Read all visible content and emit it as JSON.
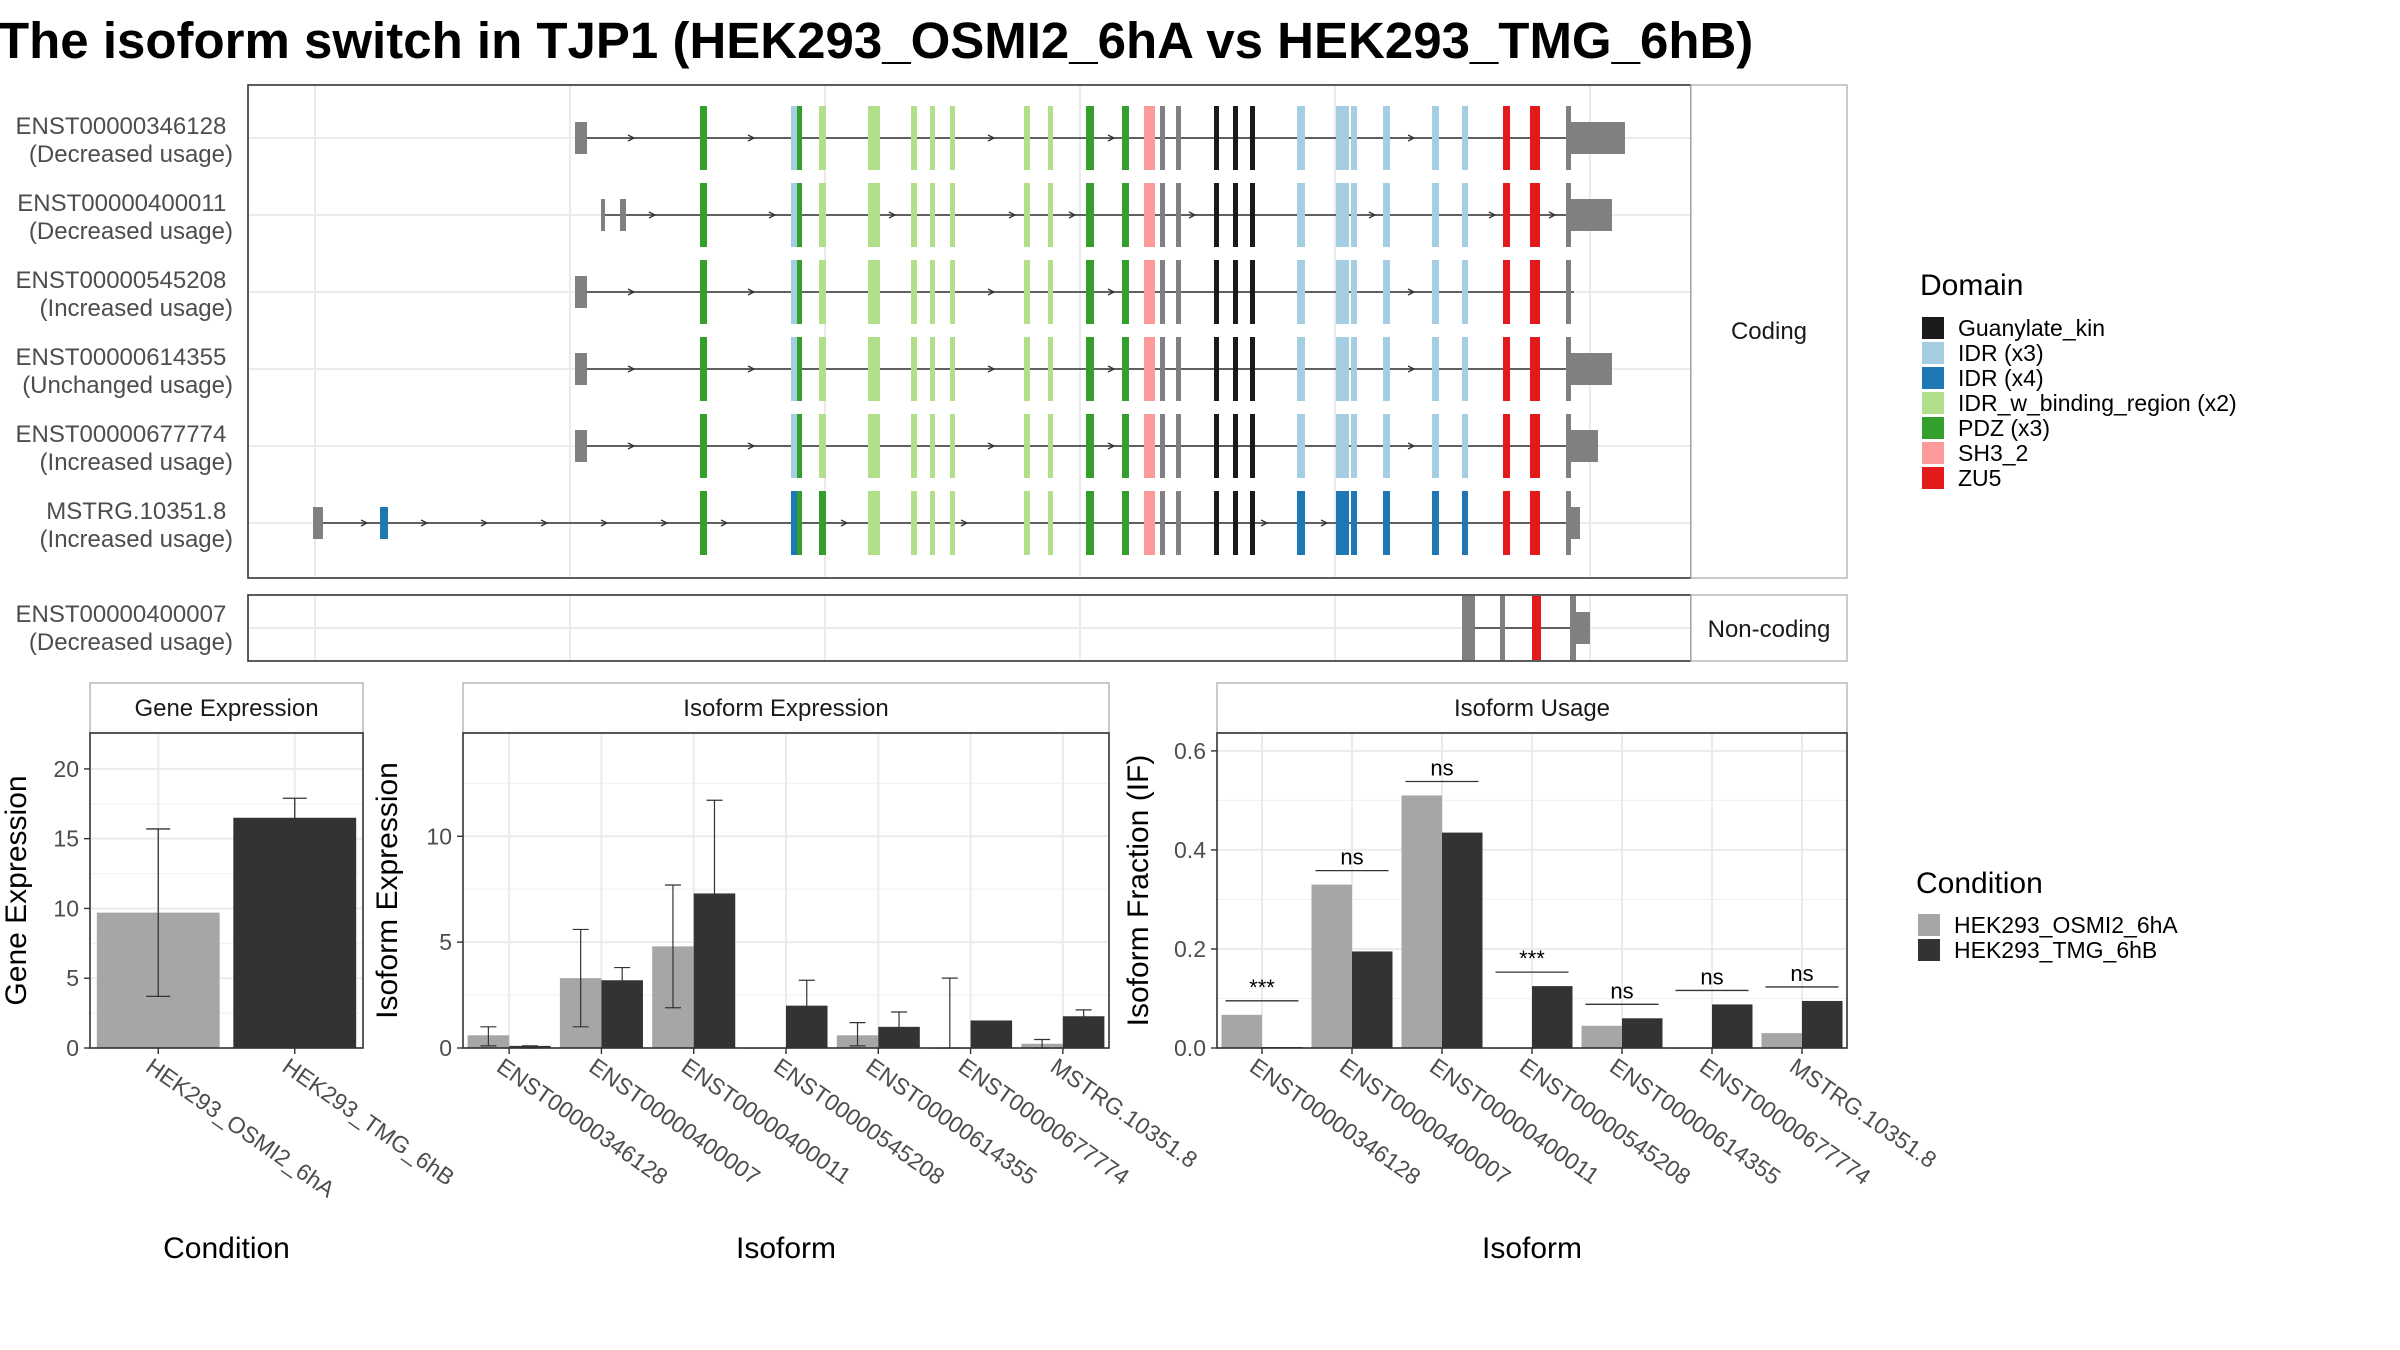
{
  "title": "The isoform switch in TJP1 (HEK293_OSMI2_6hA vs HEK293_TMG_6hB)",
  "colors": {
    "cond_a": "#a6a6a6",
    "cond_b": "#333333",
    "utr": "#808080",
    "grid": "#ebebeb",
    "panel_border": "#333333",
    "strip_border": "#b3b3b3"
  },
  "structure": {
    "strip_coding": "Coding",
    "strip_noncoding": "Non-coding",
    "coding_labels": [
      {
        "id": "ENST00000346128",
        "usage": "(Decreased usage)"
      },
      {
        "id": "ENST00000400011",
        "usage": "(Decreased usage)"
      },
      {
        "id": "ENST00000545208",
        "usage": "(Increased usage)"
      },
      {
        "id": "ENST00000614355",
        "usage": "(Unchanged usage)"
      },
      {
        "id": "ENST00000677774",
        "usage": "(Increased usage)"
      },
      {
        "id": "MSTRG.10351.8",
        "usage": "(Increased usage)"
      }
    ],
    "noncoding_labels": [
      {
        "id": "ENST00000400007",
        "usage": "(Decreased usage)"
      }
    ]
  },
  "domain_legend": {
    "title": "Domain",
    "items": [
      {
        "label": "Guanylate_kin",
        "color": "#1a1a1a"
      },
      {
        "label": "IDR (x3)",
        "color": "#a6cee3"
      },
      {
        "label": "IDR (x4)",
        "color": "#1f78b4"
      },
      {
        "label": "IDR_w_binding_region (x2)",
        "color": "#b2df8a"
      },
      {
        "label": "PDZ (x3)",
        "color": "#33a02c"
      },
      {
        "label": "SH3_2",
        "color": "#fb9a99"
      },
      {
        "label": "ZU5",
        "color": "#e31a1c"
      }
    ]
  },
  "condition_legend": {
    "title": "Condition",
    "items": [
      {
        "label": "HEK293_OSMI2_6hA",
        "color": "#a6a6a6"
      },
      {
        "label": "HEK293_TMG_6hB",
        "color": "#333333"
      }
    ]
  },
  "chart_data": [
    {
      "type": "bar",
      "title": "Gene Expression",
      "xlabel": "Condition",
      "ylabel": "Gene Expression",
      "ylim": [
        0,
        22
      ],
      "yticks": [
        0,
        5,
        10,
        15,
        20
      ],
      "categories": [
        "HEK293_OSMI2_6hA",
        "HEK293_TMG_6hB"
      ],
      "values": [
        9.7,
        16.5
      ],
      "error_low": [
        3.7,
        15.1
      ],
      "error_high": [
        15.7,
        17.9
      ]
    },
    {
      "type": "bar",
      "title": "Isoform Expression",
      "xlabel": "Isoform",
      "ylabel": "Isoform Expression",
      "ylim": [
        0,
        14.5
      ],
      "yticks": [
        0,
        5,
        10
      ],
      "categories": [
        "ENST00000346128",
        "ENST00000400007",
        "ENST00000400011",
        "ENST00000545208",
        "ENST00000614355",
        "ENST00000677774",
        "MSTRG.10351.8"
      ],
      "series": [
        {
          "name": "HEK293_OSMI2_6hA",
          "values": [
            0.6,
            3.3,
            4.8,
            0.0,
            0.6,
            0.0,
            0.2
          ],
          "error_low": [
            0.1,
            1.0,
            1.9,
            0.0,
            0.1,
            0.0,
            0.0
          ],
          "error_high": [
            1.0,
            5.6,
            7.7,
            0.0,
            1.2,
            3.3,
            0.4
          ]
        },
        {
          "name": "HEK293_TMG_6hB",
          "values": [
            0.1,
            3.2,
            7.3,
            2.0,
            1.0,
            1.3,
            1.5
          ],
          "error_low": [
            0.0,
            2.5,
            2.9,
            0.8,
            0.6,
            null,
            1.2
          ],
          "error_high": [
            0.1,
            3.8,
            11.7,
            3.2,
            1.7,
            null,
            1.8
          ]
        }
      ]
    },
    {
      "type": "bar",
      "title": "Isoform Usage",
      "xlabel": "Isoform",
      "ylabel": "Isoform Fraction (IF)",
      "ylim": [
        0,
        0.62
      ],
      "yticks": [
        0.0,
        0.2,
        0.4,
        0.6
      ],
      "ytick_labels": [
        "0.0",
        "0.2",
        "0.4",
        "0.6"
      ],
      "categories": [
        "ENST00000346128",
        "ENST00000400007",
        "ENST00000400011",
        "ENST00000545208",
        "ENST00000614355",
        "ENST00000677774",
        "MSTRG.10351.8"
      ],
      "series": [
        {
          "name": "HEK293_OSMI2_6hA",
          "values": [
            0.067,
            0.33,
            0.51,
            0.0,
            0.045,
            0.0,
            0.03
          ]
        },
        {
          "name": "HEK293_TMG_6hB",
          "values": [
            0.002,
            0.195,
            0.435,
            0.125,
            0.06,
            0.088,
            0.095
          ]
        }
      ],
      "significance": [
        "***",
        "ns",
        "ns",
        "***",
        "ns",
        "ns",
        "ns"
      ]
    }
  ]
}
